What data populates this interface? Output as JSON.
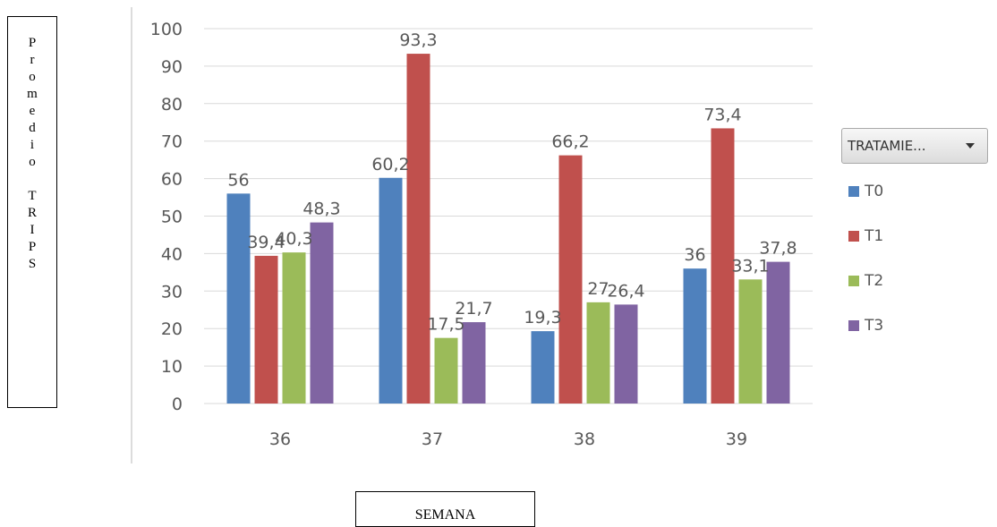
{
  "y_axis_box": {
    "label": "Promedio TRIPS"
  },
  "x_axis_box": {
    "label": "SEMANA"
  },
  "legend": {
    "filter_label": "TRATAMIE..."
  },
  "chart_data": {
    "type": "bar",
    "categories": [
      "36",
      "37",
      "38",
      "39"
    ],
    "series": [
      {
        "name": "T0",
        "color": "#4f81bd",
        "values": [
          56,
          60.2,
          19.3,
          36
        ],
        "labels": [
          "56",
          "60,2",
          "19,3",
          "36"
        ]
      },
      {
        "name": "T1",
        "color": "#c0504d",
        "values": [
          39.4,
          93.3,
          66.2,
          73.4
        ],
        "labels": [
          "39,4",
          "93,3",
          "66,2",
          "73,4"
        ]
      },
      {
        "name": "T2",
        "color": "#9bbb59",
        "values": [
          40.3,
          17.5,
          27,
          33.1
        ],
        "labels": [
          "40,3",
          "17,5",
          "27",
          "33,1"
        ]
      },
      {
        "name": "T3",
        "color": "#8064a2",
        "values": [
          48.3,
          21.7,
          26.4,
          37.8
        ],
        "labels": [
          "48,3",
          "21,7",
          "26,4",
          "37,8"
        ]
      }
    ],
    "ylim": [
      0,
      100
    ],
    "yticks": [
      0,
      10,
      20,
      30,
      40,
      50,
      60,
      70,
      80,
      90,
      100
    ],
    "grid": true,
    "legend_position": "right"
  }
}
